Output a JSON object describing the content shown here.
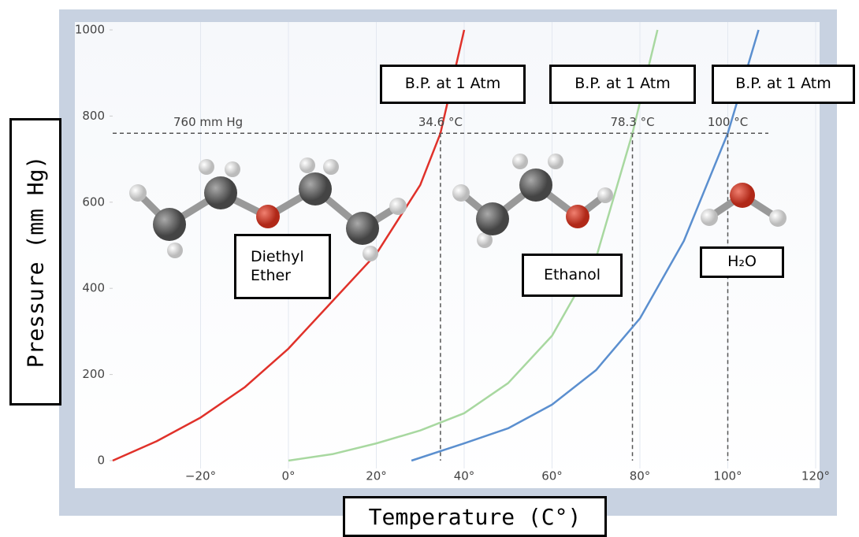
{
  "chart_data": {
    "type": "line",
    "x_label": "Temperature (C°)",
    "y_label": "Pressure (mm Hg)",
    "xlim": [
      -40,
      120
    ],
    "ylim": [
      0,
      1000
    ],
    "xticks": [
      {
        "value": -20,
        "label": "−20°"
      },
      {
        "value": 0,
        "label": "0°"
      },
      {
        "value": 20,
        "label": "20°"
      },
      {
        "value": 40,
        "label": "40°"
      },
      {
        "value": 60,
        "label": "60°"
      },
      {
        "value": 80,
        "label": "80°"
      },
      {
        "value": 100,
        "label": "100°"
      },
      {
        "value": 120,
        "label": "120°"
      }
    ],
    "yticks": [
      0,
      200,
      400,
      600,
      800,
      1000
    ],
    "grid": "x",
    "reference_line": {
      "value": 760,
      "label": "760 mm Hg"
    },
    "series": [
      {
        "name": "Diethyl Ether",
        "color": "#e0312a",
        "x": [
          -40,
          -30,
          -20,
          -10,
          0,
          10,
          20,
          30,
          34.6,
          40
        ],
        "values": [
          0,
          45,
          100,
          170,
          260,
          370,
          480,
          640,
          760,
          1000
        ],
        "boiling_point": {
          "value": 34.6,
          "label": "34.6 °C"
        },
        "note": "B.P. at 1 Atm"
      },
      {
        "name": "Ethanol",
        "color": "#a8d8a0",
        "x": [
          0,
          10,
          20,
          30,
          40,
          50,
          60,
          70,
          78.3,
          84
        ],
        "values": [
          0,
          15,
          40,
          70,
          110,
          180,
          290,
          470,
          760,
          1000
        ],
        "boiling_point": {
          "value": 78.3,
          "label": "78.3 °C"
        },
        "note": "B.P. at 1 Atm"
      },
      {
        "name": "H₂O",
        "color": "#5b8fcf",
        "x": [
          28,
          40,
          50,
          60,
          70,
          80,
          90,
          100,
          107
        ],
        "values": [
          0,
          40,
          75,
          130,
          210,
          330,
          510,
          760,
          1000
        ],
        "boiling_point": {
          "value": 100,
          "label": "100 °C"
        },
        "note": "B.P. at 1 Atm"
      }
    ]
  }
}
